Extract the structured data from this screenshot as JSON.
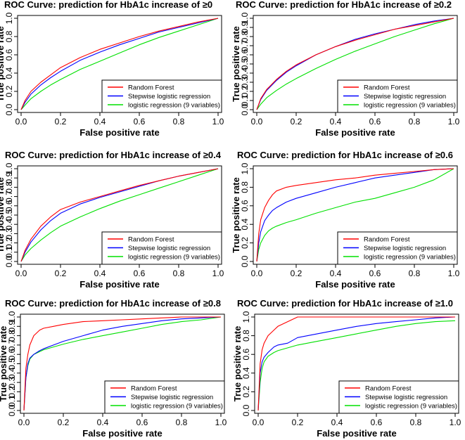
{
  "colors": {
    "random_forest": "#ff0000",
    "stepwise": "#0000ff",
    "logistic9": "#00e000",
    "axes": "#000000"
  },
  "chart_data": [
    {
      "type": "line",
      "title": "ROC Curve: prediction for HbA1c increase of ≥0",
      "xlabel": "False positive rate",
      "ylabel": "True positive rate",
      "xlim": [
        0,
        1
      ],
      "ylim": [
        0,
        1
      ],
      "x_ticks": [
        "0.0",
        "0.2",
        "0.4",
        "0.6",
        "0.8",
        "1.0"
      ],
      "y_ticks": [
        "0.0",
        "0.2",
        "0.4",
        "0.6",
        "0.8",
        "1.0"
      ],
      "legend_position": "bottom-right",
      "series": [
        {
          "name": "Random Forest",
          "x": [
            0,
            0.02,
            0.05,
            0.1,
            0.15,
            0.2,
            0.3,
            0.4,
            0.5,
            0.6,
            0.7,
            0.8,
            0.9,
            1.0
          ],
          "y": [
            0,
            0.1,
            0.2,
            0.3,
            0.38,
            0.46,
            0.57,
            0.66,
            0.73,
            0.8,
            0.86,
            0.91,
            0.96,
            1.0
          ]
        },
        {
          "name": "Stepwise logistic regression",
          "x": [
            0,
            0.02,
            0.05,
            0.1,
            0.15,
            0.2,
            0.3,
            0.4,
            0.5,
            0.6,
            0.7,
            0.8,
            0.9,
            1.0
          ],
          "y": [
            0,
            0.08,
            0.17,
            0.27,
            0.35,
            0.42,
            0.54,
            0.63,
            0.71,
            0.78,
            0.85,
            0.9,
            0.95,
            1.0
          ]
        },
        {
          "name": "logistic regression (9 variables)",
          "x": [
            0,
            0.02,
            0.05,
            0.1,
            0.15,
            0.2,
            0.3,
            0.4,
            0.5,
            0.6,
            0.7,
            0.8,
            0.9,
            1.0
          ],
          "y": [
            0,
            0.05,
            0.12,
            0.2,
            0.27,
            0.33,
            0.44,
            0.53,
            0.62,
            0.71,
            0.79,
            0.86,
            0.93,
            1.0
          ]
        }
      ]
    },
    {
      "type": "line",
      "title": "ROC Curve: prediction for HbA1c increase of ≥0.2",
      "xlabel": "False positive rate",
      "ylabel": "True positive rate",
      "xlim": [
        0,
        1
      ],
      "ylim": [
        0,
        1
      ],
      "x_ticks": [
        "0.0",
        "0.2",
        "0.4",
        "0.6",
        "0.8",
        "1.0"
      ],
      "y_ticks": [
        "0.0",
        "0.1",
        "0.2",
        "0.3",
        "0.4",
        "0.5",
        "0.6",
        "0.7",
        "0.8",
        "0.9",
        "1.0"
      ],
      "legend_position": "bottom-right",
      "series": [
        {
          "name": "Random Forest",
          "x": [
            0,
            0.02,
            0.05,
            0.1,
            0.15,
            0.2,
            0.3,
            0.4,
            0.5,
            0.6,
            0.7,
            0.8,
            0.9,
            1.0
          ],
          "y": [
            0,
            0.12,
            0.22,
            0.33,
            0.42,
            0.49,
            0.6,
            0.69,
            0.76,
            0.82,
            0.88,
            0.92,
            0.96,
            1.0
          ]
        },
        {
          "name": "Stepwise logistic regression",
          "x": [
            0,
            0.02,
            0.05,
            0.1,
            0.15,
            0.2,
            0.3,
            0.4,
            0.5,
            0.6,
            0.7,
            0.8,
            0.9,
            1.0
          ],
          "y": [
            0,
            0.11,
            0.21,
            0.32,
            0.41,
            0.48,
            0.6,
            0.69,
            0.77,
            0.83,
            0.88,
            0.93,
            0.97,
            1.0
          ]
        },
        {
          "name": "logistic regression (9 variables)",
          "x": [
            0,
            0.02,
            0.05,
            0.1,
            0.15,
            0.2,
            0.3,
            0.4,
            0.5,
            0.6,
            0.7,
            0.8,
            0.9,
            1.0
          ],
          "y": [
            0,
            0.06,
            0.13,
            0.21,
            0.28,
            0.34,
            0.45,
            0.55,
            0.64,
            0.72,
            0.8,
            0.87,
            0.94,
            1.0
          ]
        }
      ]
    },
    {
      "type": "line",
      "title": "ROC Curve: prediction for HbA1c increase of ≥0.4",
      "xlabel": "False positive rate",
      "ylabel": "True positive rate",
      "xlim": [
        0,
        1
      ],
      "ylim": [
        0,
        1
      ],
      "x_ticks": [
        "0.0",
        "0.2",
        "0.4",
        "0.6",
        "0.8",
        "1.0"
      ],
      "y_ticks": [
        "0.0",
        "0.1",
        "0.2",
        "0.3",
        "0.4",
        "0.5",
        "0.6",
        "0.7",
        "0.8",
        "0.9",
        "1.0"
      ],
      "legend_position": "bottom-right",
      "series": [
        {
          "name": "Random Forest",
          "x": [
            0,
            0.02,
            0.05,
            0.1,
            0.15,
            0.2,
            0.3,
            0.4,
            0.5,
            0.6,
            0.7,
            0.8,
            0.9,
            1.0
          ],
          "y": [
            0,
            0.12,
            0.24,
            0.38,
            0.48,
            0.56,
            0.64,
            0.7,
            0.76,
            0.82,
            0.87,
            0.92,
            0.96,
            1.0
          ]
        },
        {
          "name": "Stepwise logistic regression",
          "x": [
            0,
            0.02,
            0.05,
            0.1,
            0.15,
            0.2,
            0.3,
            0.4,
            0.5,
            0.6,
            0.7,
            0.8,
            0.9,
            1.0
          ],
          "y": [
            0,
            0.1,
            0.21,
            0.34,
            0.44,
            0.52,
            0.62,
            0.69,
            0.75,
            0.81,
            0.87,
            0.92,
            0.96,
            1.0
          ]
        },
        {
          "name": "logistic regression (9 variables)",
          "x": [
            0,
            0.02,
            0.05,
            0.1,
            0.15,
            0.2,
            0.3,
            0.4,
            0.5,
            0.6,
            0.7,
            0.8,
            0.9,
            1.0
          ],
          "y": [
            0,
            0.07,
            0.14,
            0.23,
            0.31,
            0.38,
            0.48,
            0.57,
            0.65,
            0.72,
            0.79,
            0.86,
            0.93,
            1.0
          ]
        }
      ]
    },
    {
      "type": "line",
      "title": "ROC Curve: prediction for HbA1c increase of ≥0.6",
      "xlabel": "False positive rate",
      "ylabel": "True positive rate",
      "xlim": [
        0,
        1
      ],
      "ylim": [
        0,
        1
      ],
      "x_ticks": [
        "0.0",
        "0.2",
        "0.4",
        "0.6",
        "0.8",
        "1.0"
      ],
      "y_ticks": [
        "0.0",
        "0.2",
        "0.4",
        "0.6",
        "0.8",
        "1.0"
      ],
      "legend_position": "bottom-right",
      "series": [
        {
          "name": "Random Forest",
          "x": [
            0,
            0.01,
            0.02,
            0.04,
            0.06,
            0.08,
            0.1,
            0.15,
            0.2,
            0.3,
            0.4,
            0.5,
            0.6,
            0.7,
            0.8,
            0.9,
            1.0
          ],
          "y": [
            0,
            0.3,
            0.45,
            0.58,
            0.66,
            0.72,
            0.76,
            0.8,
            0.82,
            0.85,
            0.88,
            0.9,
            0.93,
            0.95,
            0.97,
            0.99,
            1.0
          ]
        },
        {
          "name": "Stepwise logistic regression",
          "x": [
            0,
            0.01,
            0.02,
            0.04,
            0.06,
            0.08,
            0.1,
            0.15,
            0.2,
            0.3,
            0.4,
            0.5,
            0.6,
            0.7,
            0.8,
            0.9,
            1.0
          ],
          "y": [
            0,
            0.2,
            0.32,
            0.44,
            0.5,
            0.55,
            0.58,
            0.64,
            0.68,
            0.74,
            0.8,
            0.85,
            0.9,
            0.93,
            0.96,
            0.99,
            1.0
          ]
        },
        {
          "name": "logistic regression (9 variables)",
          "x": [
            0,
            0.01,
            0.02,
            0.04,
            0.06,
            0.08,
            0.1,
            0.15,
            0.2,
            0.3,
            0.4,
            0.5,
            0.6,
            0.7,
            0.8,
            0.9,
            1.0
          ],
          "y": [
            0,
            0.13,
            0.2,
            0.28,
            0.33,
            0.36,
            0.38,
            0.42,
            0.45,
            0.52,
            0.58,
            0.64,
            0.68,
            0.74,
            0.8,
            0.88,
            1.0
          ]
        }
      ]
    },
    {
      "type": "line",
      "title": "ROC Curve: prediction for HbA1c increase of ≥0.8",
      "xlabel": "False positive rate",
      "ylabel": "True positive rate",
      "xlim": [
        0,
        1
      ],
      "ylim": [
        0,
        1
      ],
      "x_ticks": [
        "0.0",
        "0.2",
        "0.4",
        "0.6",
        "0.8",
        "1.0"
      ],
      "y_ticks": [
        "0.0",
        "0.1",
        "0.2",
        "0.3",
        "0.4",
        "0.5",
        "0.6",
        "0.7",
        "0.8",
        "0.9",
        "1.0"
      ],
      "legend_position": "bottom-right",
      "series": [
        {
          "name": "Random Forest",
          "x": [
            0,
            0.01,
            0.02,
            0.03,
            0.05,
            0.08,
            0.1,
            0.15,
            0.2,
            0.3,
            0.4,
            0.5,
            0.6,
            0.7,
            0.8,
            0.9,
            1.0
          ],
          "y": [
            0,
            0.45,
            0.6,
            0.7,
            0.8,
            0.86,
            0.88,
            0.9,
            0.92,
            0.95,
            0.96,
            0.97,
            0.98,
            0.99,
            1.0,
            1.0,
            1.0
          ]
        },
        {
          "name": "Stepwise logistic regression",
          "x": [
            0,
            0.01,
            0.02,
            0.03,
            0.05,
            0.08,
            0.1,
            0.15,
            0.2,
            0.3,
            0.4,
            0.5,
            0.6,
            0.7,
            0.8,
            0.9,
            1.0
          ],
          "y": [
            0,
            0.35,
            0.5,
            0.56,
            0.6,
            0.64,
            0.66,
            0.7,
            0.74,
            0.8,
            0.86,
            0.9,
            0.93,
            0.96,
            0.98,
            0.99,
            1.0
          ]
        },
        {
          "name": "logistic regression (9 variables)",
          "x": [
            0,
            0.01,
            0.02,
            0.03,
            0.05,
            0.08,
            0.1,
            0.15,
            0.2,
            0.3,
            0.4,
            0.5,
            0.6,
            0.7,
            0.8,
            0.9,
            1.0
          ],
          "y": [
            0,
            0.35,
            0.48,
            0.55,
            0.6,
            0.63,
            0.65,
            0.68,
            0.71,
            0.76,
            0.8,
            0.84,
            0.88,
            0.92,
            0.95,
            0.97,
            1.0
          ]
        }
      ]
    },
    {
      "type": "line",
      "title": "ROC Curve: prediction for HbA1c increase of ≥1.0",
      "xlabel": "False positive rate",
      "ylabel": "True positive rate",
      "xlim": [
        0,
        1
      ],
      "ylim": [
        0,
        1
      ],
      "x_ticks": [
        "0.0",
        "0.2",
        "0.4",
        "0.6",
        "0.8",
        "1.0"
      ],
      "y_ticks": [
        "0.0",
        "0.2",
        "0.4",
        "0.6",
        "0.8",
        "1.0"
      ],
      "legend_position": "bottom-right",
      "series": [
        {
          "name": "Random Forest",
          "x": [
            0,
            0.01,
            0.02,
            0.03,
            0.05,
            0.08,
            0.1,
            0.15,
            0.2,
            0.3,
            0.5,
            0.7,
            1.0
          ],
          "y": [
            0,
            0.5,
            0.65,
            0.72,
            0.8,
            0.86,
            0.9,
            0.95,
            1.0,
            1.0,
            1.0,
            1.0,
            1.0
          ]
        },
        {
          "name": "Stepwise logistic regression",
          "x": [
            0,
            0.01,
            0.02,
            0.03,
            0.05,
            0.08,
            0.1,
            0.15,
            0.2,
            0.3,
            0.4,
            0.5,
            0.6,
            0.7,
            0.8,
            0.9,
            1.0
          ],
          "y": [
            0,
            0.4,
            0.52,
            0.57,
            0.62,
            0.68,
            0.7,
            0.72,
            0.78,
            0.82,
            0.86,
            0.9,
            0.93,
            0.95,
            0.97,
            0.99,
            1.0
          ]
        },
        {
          "name": "logistic regression (9 variables)",
          "x": [
            0,
            0.01,
            0.02,
            0.03,
            0.05,
            0.08,
            0.1,
            0.15,
            0.2,
            0.3,
            0.4,
            0.5,
            0.6,
            0.7,
            0.8,
            0.9,
            1.0
          ],
          "y": [
            0,
            0.3,
            0.45,
            0.52,
            0.58,
            0.62,
            0.64,
            0.67,
            0.7,
            0.74,
            0.78,
            0.82,
            0.86,
            0.9,
            0.93,
            0.95,
            0.96
          ]
        }
      ]
    }
  ]
}
